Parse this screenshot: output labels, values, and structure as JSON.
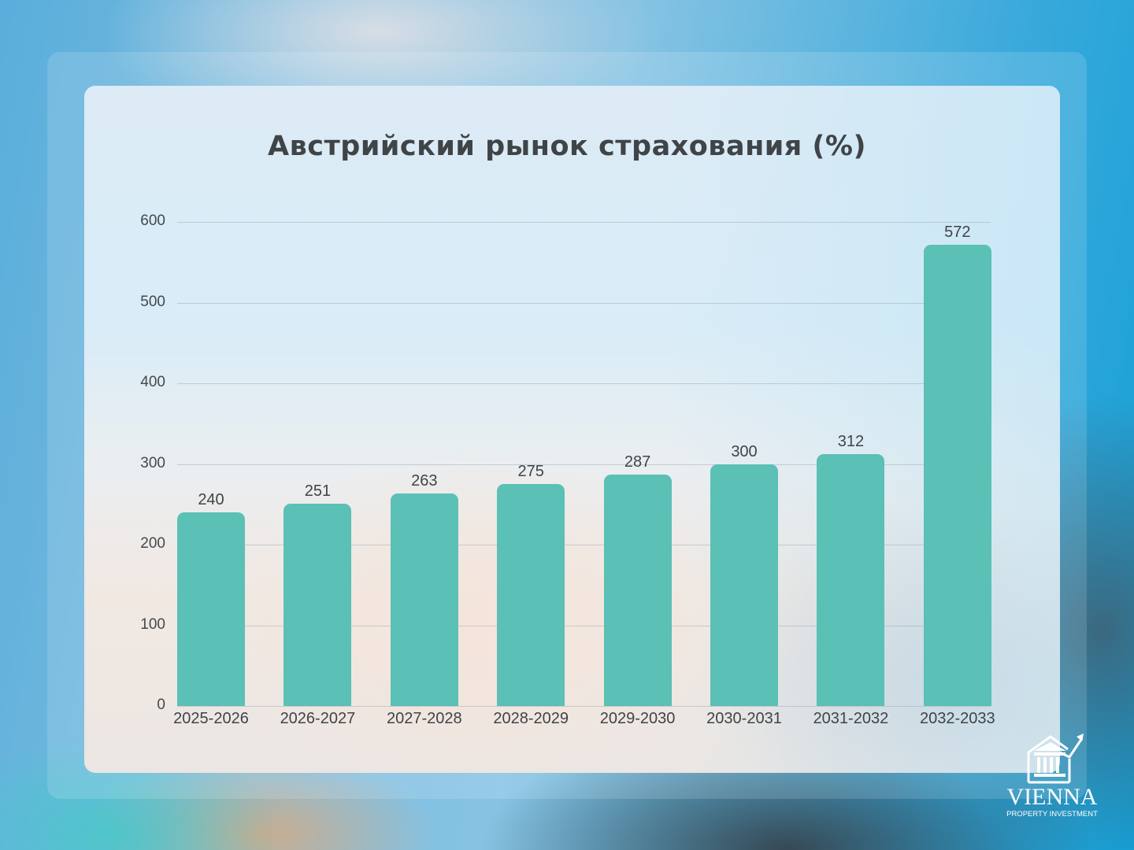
{
  "chart_data": {
    "type": "bar",
    "title": "Австрийский рынок страхования (%)",
    "xlabel": "",
    "ylabel": "",
    "categories": [
      "2025-2026",
      "2026-2027",
      "2027-2028",
      "2028-2029",
      "2029-2030",
      "2030-2031",
      "2031-2032",
      "2032-2033"
    ],
    "values": [
      240,
      251,
      263,
      275,
      287,
      300,
      312,
      572
    ],
    "ylim": [
      0,
      600
    ],
    "yticks": [
      0,
      100,
      200,
      300,
      400,
      500,
      600
    ],
    "grid": true,
    "legend": null,
    "data_labels": true,
    "bar_color": "#5bc0b5"
  },
  "brand": {
    "name": "VIENNA",
    "tagline": "PROPERTY INVESTMENT",
    "icon": "building-growth-arrow-icon"
  }
}
